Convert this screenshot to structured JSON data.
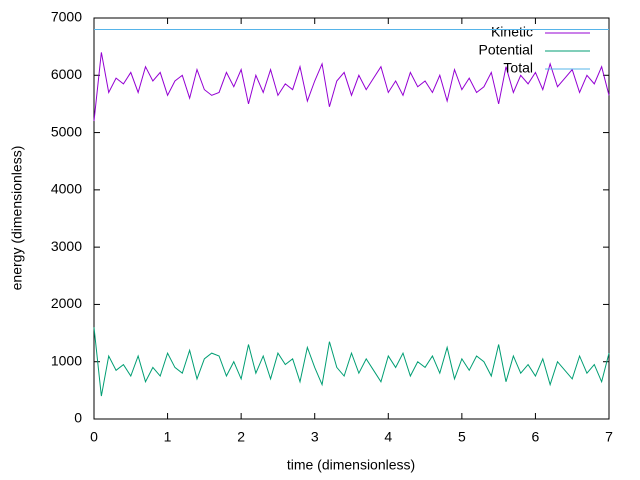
{
  "chart_data": {
    "type": "line",
    "xlabel": "time (dimensionless)",
    "ylabel": "energy (dimensionless)",
    "x": [
      0,
      0.1,
      0.2,
      0.3,
      0.4,
      0.5,
      0.6,
      0.7,
      0.8,
      0.9,
      1,
      1.1,
      1.2,
      1.3,
      1.4,
      1.5,
      1.6,
      1.7,
      1.8,
      1.9,
      2,
      2.1,
      2.2,
      2.3,
      2.4,
      2.5,
      2.6,
      2.7,
      2.8,
      2.9,
      3,
      3.1,
      3.2,
      3.3,
      3.4,
      3.5,
      3.6,
      3.7,
      3.8,
      3.9,
      4,
      4.1,
      4.2,
      4.3,
      4.4,
      4.5,
      4.6,
      4.7,
      4.8,
      4.9,
      5,
      5.1,
      5.2,
      5.3,
      5.4,
      5.5,
      5.6,
      5.7,
      5.8,
      5.9,
      6,
      6.1,
      6.2,
      6.3,
      6.4,
      6.5,
      6.6,
      6.7,
      6.8,
      6.9,
      7
    ],
    "series": [
      {
        "name": "Kinetic",
        "color": "#9400d3",
        "values": [
          5200,
          6400,
          5700,
          5950,
          5850,
          6050,
          5700,
          6150,
          5900,
          6050,
          5650,
          5900,
          6000,
          5600,
          6100,
          5750,
          5650,
          5700,
          6050,
          5800,
          6100,
          5500,
          6000,
          5700,
          6100,
          5650,
          5850,
          5750,
          6150,
          5550,
          5900,
          6200,
          5450,
          5900,
          6050,
          5650,
          6000,
          5750,
          5950,
          6150,
          5700,
          5900,
          5650,
          6050,
          5800,
          5900,
          5700,
          6000,
          5550,
          6100,
          5750,
          5950,
          5700,
          5800,
          6050,
          5500,
          6150,
          5700,
          6000,
          5850,
          6050,
          5750,
          6200,
          5800,
          5950,
          6100,
          5700,
          6000,
          5850,
          6150,
          5650
        ]
      },
      {
        "name": "Potential",
        "color": "#009e73",
        "values": [
          1600,
          400,
          1100,
          850,
          950,
          750,
          1100,
          650,
          900,
          750,
          1150,
          900,
          800,
          1200,
          700,
          1050,
          1150,
          1100,
          750,
          1000,
          700,
          1300,
          800,
          1100,
          700,
          1150,
          950,
          1050,
          650,
          1250,
          900,
          600,
          1350,
          900,
          750,
          1150,
          800,
          1050,
          850,
          650,
          1100,
          900,
          1150,
          750,
          1000,
          900,
          1100,
          800,
          1250,
          700,
          1050,
          850,
          1100,
          1000,
          750,
          1300,
          650,
          1100,
          800,
          950,
          750,
          1050,
          600,
          1000,
          850,
          700,
          1100,
          800,
          950,
          650,
          1150
        ]
      },
      {
        "name": "Total",
        "color": "#56b4e9",
        "values": [
          6800,
          6800,
          6800,
          6800,
          6800,
          6800,
          6800,
          6800,
          6800,
          6800,
          6800,
          6800,
          6800,
          6800,
          6800,
          6800,
          6800,
          6800,
          6800,
          6800,
          6800,
          6800,
          6800,
          6800,
          6800,
          6800,
          6800,
          6800,
          6800,
          6800,
          6800,
          6800,
          6800,
          6800,
          6800,
          6800,
          6800,
          6800,
          6800,
          6800,
          6800,
          6800,
          6800,
          6800,
          6800,
          6800,
          6800,
          6800,
          6800,
          6800,
          6800,
          6800,
          6800,
          6800,
          6800,
          6800,
          6800,
          6800,
          6800,
          6800,
          6800,
          6800,
          6800,
          6800,
          6800,
          6800,
          6800,
          6800,
          6800,
          6800,
          6800
        ]
      }
    ],
    "xlim": [
      0,
      7
    ],
    "xticks": [
      0,
      1,
      2,
      3,
      4,
      5,
      6,
      7
    ],
    "ylim": [
      0,
      7000
    ],
    "yticks": [
      0,
      1000,
      2000,
      3000,
      4000,
      5000,
      6000,
      7000
    ],
    "legend": "top-right"
  }
}
